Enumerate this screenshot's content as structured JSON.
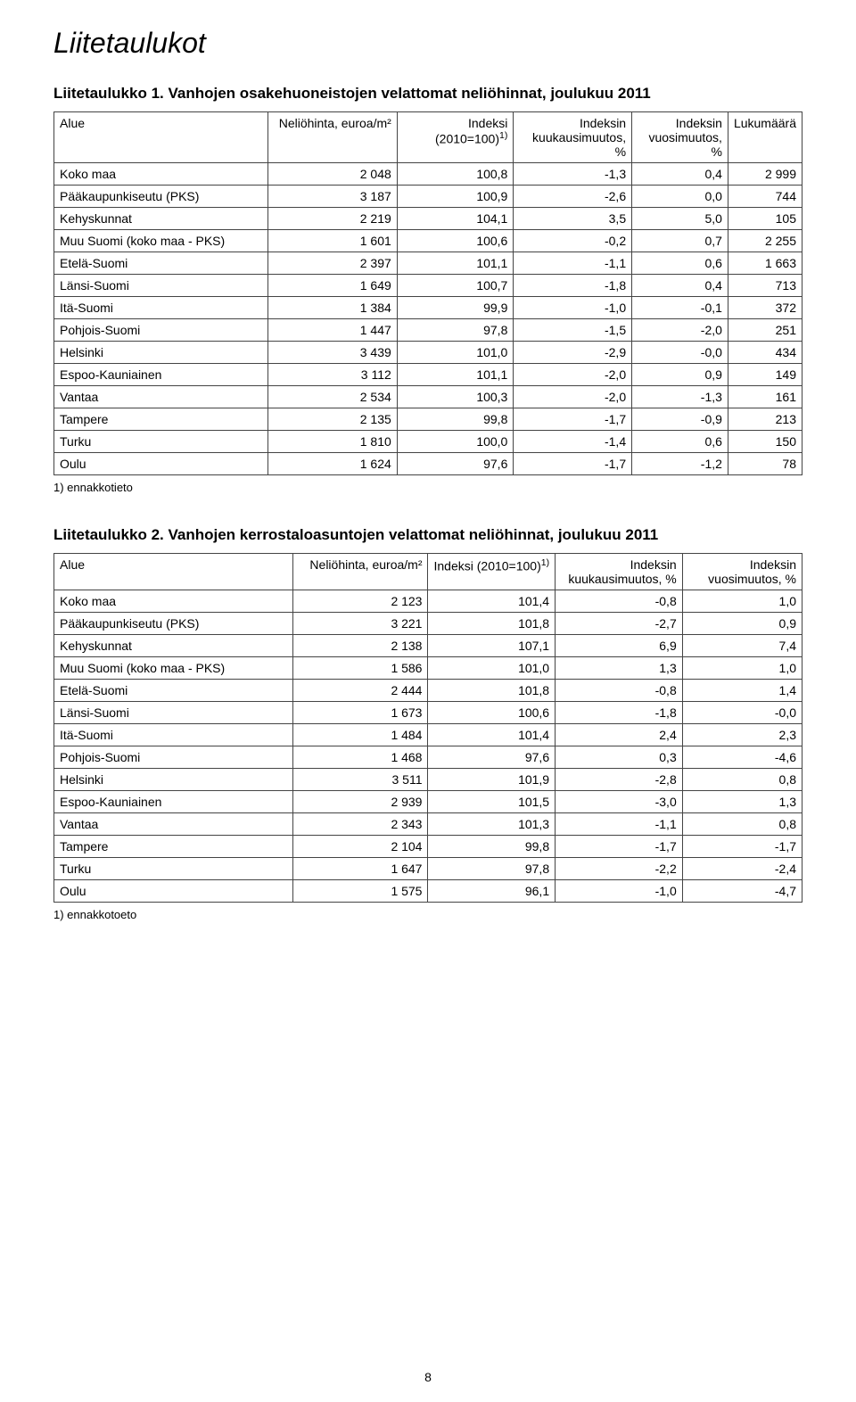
{
  "page_number": "8",
  "main_heading": "Liitetaulukot",
  "table1": {
    "caption": "Liitetaulukko 1. Vanhojen osakehuoneistojen velattomat neliöhinnat, joulukuu 2011",
    "columns": {
      "c0": "Alue",
      "c1": "Neliöhinta, euroa/m²",
      "c2_pre": "Indeksi (2010=100)",
      "c2_sup": "1)",
      "c3": "Indeksin kuukausimuutos, %",
      "c4": "Indeksin vuosimuutos, %",
      "c5": "Lukumäärä"
    },
    "col_widths": [
      "30%",
      "18%",
      "16%",
      "16%",
      "13%",
      "12%"
    ],
    "rows": [
      {
        "c0": "Koko maa",
        "c1": "2 048",
        "c2": "100,8",
        "c3": "-1,3",
        "c4": "0,4",
        "c5": "2 999"
      },
      {
        "c0": "Pääkaupunkiseutu (PKS)",
        "c1": "3 187",
        "c2": "100,9",
        "c3": "-2,6",
        "c4": "0,0",
        "c5": "744"
      },
      {
        "c0": "Kehyskunnat",
        "c1": "2 219",
        "c2": "104,1",
        "c3": "3,5",
        "c4": "5,0",
        "c5": "105"
      },
      {
        "c0": "Muu Suomi (koko maa - PKS)",
        "c1": "1 601",
        "c2": "100,6",
        "c3": "-0,2",
        "c4": "0,7",
        "c5": "2 255"
      },
      {
        "c0": "Etelä-Suomi",
        "c1": "2 397",
        "c2": "101,1",
        "c3": "-1,1",
        "c4": "0,6",
        "c5": "1 663"
      },
      {
        "c0": "Länsi-Suomi",
        "c1": "1 649",
        "c2": "100,7",
        "c3": "-1,8",
        "c4": "0,4",
        "c5": "713"
      },
      {
        "c0": "Itä-Suomi",
        "c1": "1 384",
        "c2": "99,9",
        "c3": "-1,0",
        "c4": "-0,1",
        "c5": "372"
      },
      {
        "c0": "Pohjois-Suomi",
        "c1": "1 447",
        "c2": "97,8",
        "c3": "-1,5",
        "c4": "-2,0",
        "c5": "251"
      },
      {
        "c0": "Helsinki",
        "c1": "3 439",
        "c2": "101,0",
        "c3": "-2,9",
        "c4": "-0,0",
        "c5": "434"
      },
      {
        "c0": "Espoo-Kauniainen",
        "c1": "3 112",
        "c2": "101,1",
        "c3": "-2,0",
        "c4": "0,9",
        "c5": "149"
      },
      {
        "c0": "Vantaa",
        "c1": "2 534",
        "c2": "100,3",
        "c3": "-2,0",
        "c4": "-1,3",
        "c5": "161"
      },
      {
        "c0": "Tampere",
        "c1": "2 135",
        "c2": "99,8",
        "c3": "-1,7",
        "c4": "-0,9",
        "c5": "213"
      },
      {
        "c0": "Turku",
        "c1": "1 810",
        "c2": "100,0",
        "c3": "-1,4",
        "c4": "0,6",
        "c5": "150"
      },
      {
        "c0": "Oulu",
        "c1": "1 624",
        "c2": "97,6",
        "c3": "-1,7",
        "c4": "-1,2",
        "c5": "78"
      }
    ],
    "footnote": "1) ennakkotieto"
  },
  "table2": {
    "caption": "Liitetaulukko 2. Vanhojen kerrostaloasuntojen velattomat neliöhinnat, joulukuu 2011",
    "columns": {
      "c0": "Alue",
      "c1": "Neliöhinta, euroa/m²",
      "c2_pre": "Indeksi (2010=100)",
      "c2_sup": "1)",
      "c3": "Indeksin kuukausimuutos, %",
      "c4": "Indeksin vuosimuutos, %"
    },
    "col_widths": [
      "32%",
      "18%",
      "17%",
      "17%",
      "22%"
    ],
    "rows": [
      {
        "c0": "Koko maa",
        "c1": "2 123",
        "c2": "101,4",
        "c3": "-0,8",
        "c4": "1,0"
      },
      {
        "c0": "Pääkaupunkiseutu (PKS)",
        "c1": "3 221",
        "c2": "101,8",
        "c3": "-2,7",
        "c4": "0,9"
      },
      {
        "c0": "Kehyskunnat",
        "c1": "2 138",
        "c2": "107,1",
        "c3": "6,9",
        "c4": "7,4"
      },
      {
        "c0": "Muu Suomi (koko maa - PKS)",
        "c1": "1 586",
        "c2": "101,0",
        "c3": "1,3",
        "c4": "1,0"
      },
      {
        "c0": "Etelä-Suomi",
        "c1": "2 444",
        "c2": "101,8",
        "c3": "-0,8",
        "c4": "1,4"
      },
      {
        "c0": "Länsi-Suomi",
        "c1": "1 673",
        "c2": "100,6",
        "c3": "-1,8",
        "c4": "-0,0"
      },
      {
        "c0": "Itä-Suomi",
        "c1": "1 484",
        "c2": "101,4",
        "c3": "2,4",
        "c4": "2,3"
      },
      {
        "c0": "Pohjois-Suomi",
        "c1": "1 468",
        "c2": "97,6",
        "c3": "0,3",
        "c4": "-4,6"
      },
      {
        "c0": "Helsinki",
        "c1": "3 511",
        "c2": "101,9",
        "c3": "-2,8",
        "c4": "0,8"
      },
      {
        "c0": "Espoo-Kauniainen",
        "c1": "2 939",
        "c2": "101,5",
        "c3": "-3,0",
        "c4": "1,3"
      },
      {
        "c0": "Vantaa",
        "c1": "2 343",
        "c2": "101,3",
        "c3": "-1,1",
        "c4": "0,8"
      },
      {
        "c0": "Tampere",
        "c1": "2 104",
        "c2": "99,8",
        "c3": "-1,7",
        "c4": "-1,7"
      },
      {
        "c0": "Turku",
        "c1": "1 647",
        "c2": "97,8",
        "c3": "-2,2",
        "c4": "-2,4"
      },
      {
        "c0": "Oulu",
        "c1": "1 575",
        "c2": "96,1",
        "c3": "-1,0",
        "c4": "-4,7"
      }
    ],
    "footnote": "1) ennakkotoeto"
  }
}
